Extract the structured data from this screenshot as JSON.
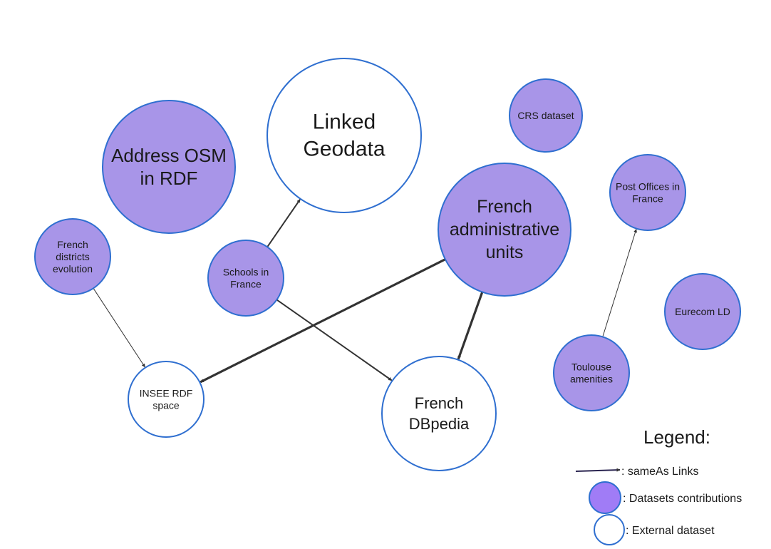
{
  "colors": {
    "contribution_fill": "#a895e8",
    "node_stroke": "#2f6fd0",
    "external_fill": "#ffffff",
    "arrow": "#333333",
    "legend_title": "#2a2450",
    "legend_swatch_fill": "#a07cf6"
  },
  "nodes": [
    {
      "id": "address-osm",
      "label": [
        "Address OSM",
        "in RDF"
      ],
      "kind": "contribution"
    },
    {
      "id": "linked-geodata",
      "label": [
        "Linked",
        "Geodata"
      ],
      "kind": "external"
    },
    {
      "id": "crs-dataset",
      "label": [
        "CRS dataset"
      ],
      "kind": "contribution"
    },
    {
      "id": "post-offices",
      "label": [
        "Post Offices in",
        "France"
      ],
      "kind": "contribution"
    },
    {
      "id": "french-admin-units",
      "label": [
        "French",
        "administrative",
        "units"
      ],
      "kind": "contribution"
    },
    {
      "id": "french-districts",
      "label": [
        "French",
        "districts",
        "evolution"
      ],
      "kind": "contribution"
    },
    {
      "id": "schools-france",
      "label": [
        "Schools in",
        "France"
      ],
      "kind": "contribution"
    },
    {
      "id": "eurecom-ld",
      "label": [
        "Eurecom LD"
      ],
      "kind": "contribution"
    },
    {
      "id": "toulouse-amenities",
      "label": [
        "Toulouse",
        "amenities"
      ],
      "kind": "contribution"
    },
    {
      "id": "insee-rdf",
      "label": [
        "INSEE RDF",
        "space"
      ],
      "kind": "external"
    },
    {
      "id": "french-dbpedia",
      "label": [
        "French",
        "DBpedia"
      ],
      "kind": "external"
    }
  ],
  "links": [
    {
      "from": "schools-france",
      "to": "linked-geodata",
      "weight": "normal"
    },
    {
      "from": "schools-france",
      "to": "french-dbpedia",
      "weight": "normal"
    },
    {
      "from": "french-admin-units",
      "to": "insee-rdf",
      "weight": "heavy"
    },
    {
      "from": "french-admin-units",
      "to": "french-dbpedia",
      "weight": "heavy"
    },
    {
      "from": "french-districts",
      "to": "insee-rdf",
      "weight": "thin"
    },
    {
      "from": "toulouse-amenities",
      "to": "post-offices",
      "weight": "thin"
    }
  ],
  "legend": {
    "title": "Legend:",
    "items": [
      {
        "symbol": "arrow",
        "label": ": sameAs Links"
      },
      {
        "symbol": "contribution",
        "label": ": Datasets contributions"
      },
      {
        "symbol": "external",
        "label": ": External dataset"
      }
    ]
  }
}
